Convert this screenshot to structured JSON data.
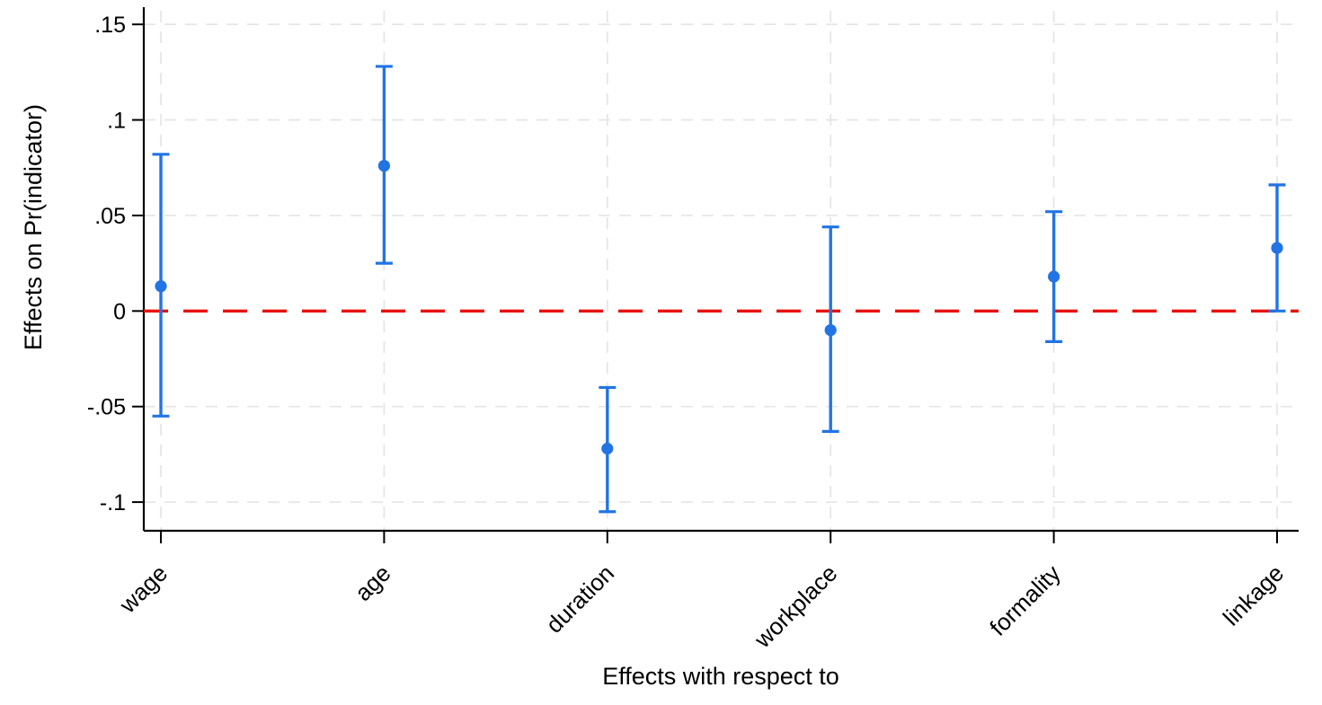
{
  "figure": {
    "background": "#ffffff",
    "description": "Coefficient plot of average marginal effects with 95% confidence intervals and a dashed red zero reference line"
  },
  "chart_data": {
    "type": "scatter",
    "subtype": "coefficient-plot-error-bars",
    "title": "",
    "xlabel": "Effects with respect to",
    "ylabel": "Effects on Pr(indicator)",
    "categories": [
      "wage",
      "age",
      "duration",
      "workplace",
      "formality",
      "linkage"
    ],
    "series": [
      {
        "name": "effect estimate",
        "estimates": [
          0.013,
          0.076,
          -0.072,
          -0.01,
          0.018,
          0.033
        ],
        "ci_low": [
          -0.055,
          0.025,
          -0.105,
          -0.063,
          -0.016,
          0.0
        ],
        "ci_high": [
          0.082,
          0.128,
          -0.04,
          0.044,
          0.052,
          0.066
        ]
      }
    ],
    "y_ticks": [
      {
        "value": 0.15,
        "label": ".15"
      },
      {
        "value": 0.1,
        "label": ".1"
      },
      {
        "value": 0.05,
        "label": ".05"
      },
      {
        "value": 0,
        "label": "0"
      },
      {
        "value": -0.05,
        "label": "-.05"
      },
      {
        "value": -0.1,
        "label": "-.1"
      }
    ],
    "ylim": [
      -0.115,
      0.159
    ],
    "x_label_angle_deg": -45,
    "reference_line": {
      "value": 0,
      "style": "dashed"
    },
    "grid": "dashed gridlines at every x category and y tick",
    "legend": "none",
    "colors": {
      "marker": "#2274e4",
      "error_bar": "#2274e4",
      "zero_line": "#e8120c",
      "gridline": "#e5e5e5",
      "axis": "#000000",
      "background": "#ffffff"
    }
  }
}
